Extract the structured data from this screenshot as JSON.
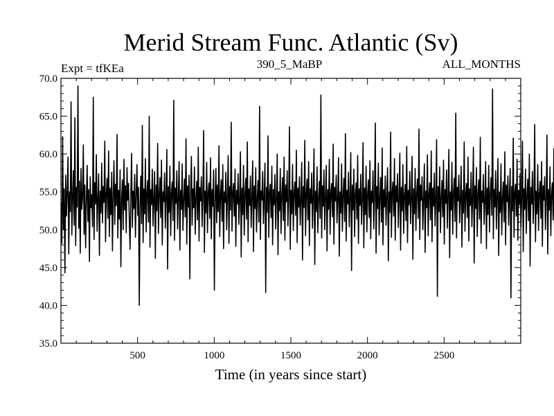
{
  "chart_data": {
    "type": "line",
    "title": "Merid Stream Func. Atlantic (Sv)",
    "subtitle_left": "Expt = tfKEa",
    "subtitle_center": "390_5_MaBP",
    "subtitle_right": "ALL_MONTHS",
    "xlabel": "Time (in years since start)",
    "ylabel": "",
    "xlim": [
      0,
      3000
    ],
    "ylim": [
      35.0,
      70.0
    ],
    "x_ticks": [
      500,
      1000,
      1500,
      2000,
      2500
    ],
    "y_ticks": [
      "35.0",
      "40.0",
      "45.0",
      "50.0",
      "55.0",
      "60.0",
      "65.0",
      "70.0"
    ],
    "grid": false,
    "line_color": "#000000",
    "series": [
      {
        "x_start": 1,
        "x_step": 5,
        "y": [
          53.5,
          48.2,
          62.3,
          50.1,
          55.4,
          44.3,
          57.2,
          51.8,
          54.9,
          59.6,
          46.8,
          55.0,
          52.4,
          66.9,
          49.3,
          54.1,
          57.8,
          50.6,
          64.8,
          47.9,
          55.6,
          53.0,
          69.0,
          50.2,
          56.4,
          46.9,
          58.1,
          52.7,
          54.3,
          61.2,
          49.4,
          55.9,
          47.6,
          53.8,
          58.5,
          51.1,
          55.3,
          45.8,
          57.0,
          52.9,
          54.6,
          50.4,
          67.5,
          48.7,
          56.2,
          53.4,
          59.9,
          49.8,
          54.0,
          57.4,
          46.6,
          55.1,
          52.2,
          58.8,
          50.9,
          55.7,
          53.6,
          61.7,
          48.4,
          54.7,
          56.8,
          51.5,
          60.4,
          49.1,
          55.5,
          52.0,
          57.6,
          47.2,
          54.4,
          59.1,
          50.7,
          56.0,
          53.2,
          62.6,
          48.9,
          55.2,
          51.4,
          57.9,
          45.1,
          54.2,
          56.6,
          50.0,
          59.3,
          52.6,
          55.8,
          49.6,
          58.2,
          53.9,
          56.1,
          51.3,
          47.4,
          54.8,
          60.1,
          50.3,
          55.1,
          52.8,
          57.3,
          49.0,
          54.5,
          58.6,
          51.9,
          55.6,
          40.0,
          53.1,
          57.1,
          50.8,
          63.8,
          48.3,
          55.4,
          52.1,
          59.4,
          49.7,
          54.9,
          56.5,
          51.0,
          65.0,
          47.7,
          55.3,
          53.3,
          58.0,
          50.5,
          54.1,
          57.7,
          46.2,
          55.9,
          52.5,
          61.4,
          49.5,
          54.6,
          56.9,
          51.6,
          59.2,
          48.0,
          55.0,
          53.7,
          57.5,
          50.2,
          54.3,
          60.6,
          44.8,
          55.7,
          52.3,
          58.4,
          49.2,
          54.8,
          56.3,
          51.2,
          67.1,
          48.6,
          55.5,
          53.5,
          57.8,
          50.1,
          54.4,
          59.0,
          47.3,
          55.2,
          52.7,
          58.7,
          49.9,
          54.0,
          56.7,
          51.7,
          62.0,
          48.1,
          55.8,
          53.0,
          57.2,
          43.5,
          54.7,
          59.7,
          50.6,
          55.4,
          52.9,
          58.3,
          49.4,
          54.2,
          56.4,
          51.3,
          60.9,
          48.5,
          55.6,
          53.8,
          57.0,
          50.4,
          54.5,
          63.1,
          47.0,
          55.1,
          52.2,
          58.9,
          49.6,
          54.9,
          56.2,
          51.5,
          59.5,
          48.8,
          55.3,
          53.1,
          57.9,
          42.0,
          54.1,
          58.1,
          50.9,
          55.9,
          52.4,
          61.1,
          49.1,
          54.6,
          56.6,
          51.1,
          58.6,
          47.5,
          55.0,
          53.6,
          57.6,
          50.0,
          54.3,
          59.8,
          48.2,
          55.7,
          52.6,
          64.2,
          49.8,
          54.8,
          56.1,
          51.8,
          58.0,
          47.8,
          55.2,
          53.4,
          57.4,
          50.7,
          54.0,
          60.3,
          46.4,
          55.5,
          52.0,
          58.5,
          49.3,
          54.7,
          56.8,
          51.4,
          61.6,
          48.4,
          55.4,
          53.2,
          57.1,
          50.3,
          54.4,
          59.1,
          47.1,
          55.8,
          52.8,
          58.2,
          49.7,
          54.2,
          56.5,
          51.0,
          66.3,
          48.7,
          55.1,
          53.9,
          57.7,
          50.8,
          54.5,
          58.8,
          41.7,
          55.6,
          52.3,
          62.4,
          49.0,
          54.9,
          56.0,
          51.6,
          58.4,
          48.0,
          55.3,
          53.3,
          57.3,
          50.1,
          54.1,
          60.0,
          46.7,
          55.0,
          52.5,
          58.1,
          49.5,
          54.6,
          56.9,
          51.2,
          59.6,
          48.6,
          55.9,
          53.7,
          57.8,
          50.5,
          54.3,
          63.6,
          47.4,
          55.2,
          52.1,
          58.6,
          49.9,
          54.8,
          56.3,
          51.9,
          60.5,
          48.3,
          55.5,
          53.0,
          57.0,
          50.6,
          54.0,
          58.9,
          46.0,
          55.7,
          52.9,
          61.8,
          49.2,
          54.7,
          56.7,
          51.3,
          59.0,
          47.9,
          55.4,
          53.5,
          57.5,
          50.2,
          54.4,
          60.7,
          45.4,
          55.1,
          52.4,
          58.3,
          49.6,
          54.2,
          56.4,
          51.5,
          67.8,
          48.9,
          55.8,
          53.1,
          57.9,
          50.0,
          54.5,
          58.5,
          47.2,
          55.3,
          52.7,
          59.3,
          49.4,
          54.9,
          56.1,
          51.7,
          61.3,
          48.1,
          55.6,
          53.8,
          57.2,
          50.9,
          54.1,
          59.5,
          46.5,
          55.0,
          52.2,
          58.7,
          49.8,
          54.6,
          56.8,
          51.1,
          62.7,
          48.5,
          55.2,
          53.4,
          57.6,
          50.4,
          54.3,
          60.2,
          44.6,
          55.9,
          52.6,
          58.0,
          49.1,
          54.8,
          56.2,
          51.4,
          59.8,
          48.2,
          55.4,
          53.2,
          57.3,
          50.7,
          54.0,
          61.5,
          47.6,
          55.5,
          52.0,
          58.4,
          49.7,
          54.7,
          56.6,
          51.6,
          59.1,
          48.8,
          55.1,
          53.6,
          57.8,
          50.1,
          54.4,
          64.1,
          46.9,
          55.7,
          52.8,
          58.8,
          49.3,
          54.2,
          56.9,
          51.0,
          60.8,
          48.0,
          55.3,
          53.0,
          57.1,
          50.6,
          54.5,
          58.2,
          45.9,
          55.0,
          52.3,
          62.9,
          49.0,
          54.9,
          56.3,
          51.8,
          59.4,
          48.6,
          55.8,
          53.7,
          57.4,
          50.3,
          54.1,
          60.1,
          47.3,
          55.6,
          52.5,
          58.6,
          49.5,
          54.6,
          56.0,
          51.2,
          61.0,
          48.3,
          55.2,
          53.3,
          57.7,
          50.8,
          54.3,
          59.7,
          46.1,
          55.4,
          52.1,
          58.1,
          49.9,
          54.8,
          56.7,
          51.5,
          63.3,
          48.7,
          55.9,
          53.9,
          57.0,
          50.0,
          54.0,
          58.7,
          47.0,
          55.1,
          52.9,
          59.9,
          49.2,
          54.7,
          56.2,
          51.3,
          60.4,
          48.4,
          55.5,
          53.1,
          57.5,
          50.5,
          54.4,
          61.9,
          41.2,
          55.7,
          52.4,
          58.3,
          49.6,
          54.2,
          56.5,
          51.7,
          59.2,
          48.1,
          55.3,
          53.5,
          57.9,
          50.2,
          54.5,
          60.6,
          46.3,
          55.0,
          52.6,
          58.9,
          49.4,
          54.9,
          56.8,
          51.1,
          65.4,
          48.9,
          55.6,
          53.8,
          57.2,
          50.9,
          54.1,
          58.4,
          47.7,
          55.2,
          52.2,
          61.6,
          49.8,
          54.6,
          56.1,
          51.6,
          59.6,
          48.5,
          55.4,
          53.2,
          57.6,
          50.4,
          54.3,
          60.9,
          45.6,
          55.8,
          52.8,
          58.2,
          49.1,
          54.8,
          56.6,
          51.4,
          62.2,
          48.2,
          55.1,
          53.6,
          57.3,
          50.7,
          54.0,
          59.0,
          47.5,
          55.5,
          52.0,
          58.5,
          49.7,
          54.7,
          56.9,
          51.9,
          68.6,
          48.8,
          55.3,
          53.0,
          57.8,
          50.1,
          54.4,
          59.4,
          46.6,
          55.0,
          52.3,
          58.7,
          49.3,
          54.2,
          56.3,
          51.0,
          60.3,
          48.0,
          55.9,
          53.7,
          57.1,
          50.6,
          54.5,
          58.1,
          41.0,
          55.7,
          52.5,
          62.1,
          49.0,
          54.9,
          56.0,
          51.8,
          59.3,
          48.6,
          55.2,
          53.3,
          57.4,
          50.3,
          54.1,
          61.7,
          47.1,
          55.4,
          52.7,
          58.0,
          49.5,
          54.6,
          56.7,
          51.2,
          60.0,
          45.2,
          55.6,
          53.4,
          57.7,
          50.8,
          54.3,
          63.9,
          48.4,
          55.1,
          52.1,
          58.6,
          49.9,
          54.8,
          56.4,
          51.5,
          59.0,
          47.8,
          55.8,
          53.9,
          57.0,
          50.0,
          54.0,
          62.5,
          46.8,
          55.3,
          52.6,
          58.3,
          49.2,
          54.7,
          56.2,
          51.3,
          60.7,
          48.1,
          55.5,
          53.1,
          57.5,
          50.5,
          54.4,
          59.2,
          47.4,
          55.0,
          52.4,
          61.3
        ]
      }
    ]
  }
}
